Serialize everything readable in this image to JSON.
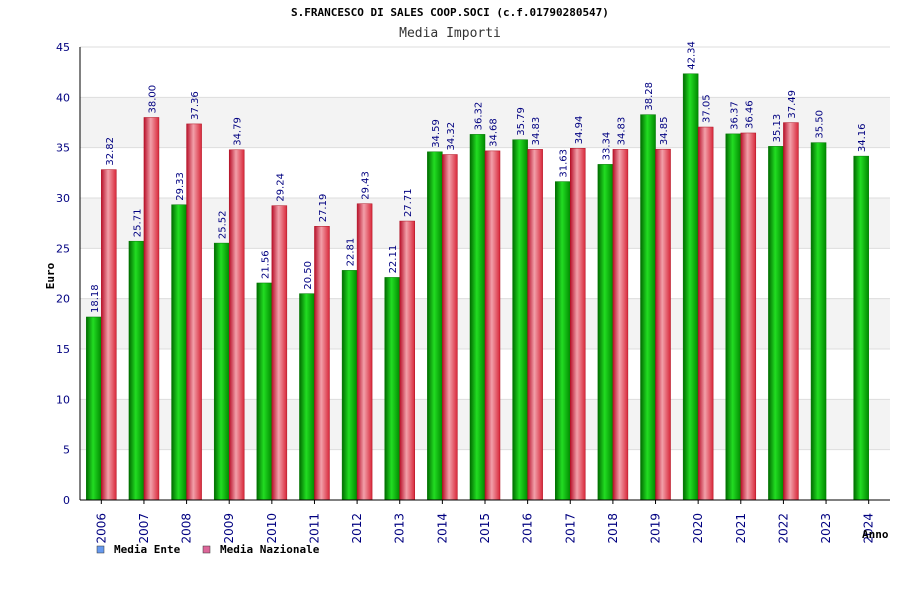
{
  "chart_data": {
    "type": "bar",
    "title": "S.FRANCESCO DI SALES COOP.SOCI (c.f.01790280547)",
    "subtitle": "Media Importi",
    "xlabel": "Anno",
    "ylabel": "Euro",
    "ylim": [
      0,
      45
    ],
    "yticks": [
      0,
      5,
      10,
      15,
      20,
      25,
      30,
      35,
      40,
      45
    ],
    "grid": true,
    "legend_position": "bottom-left",
    "categories": [
      "2006",
      "2007",
      "2008",
      "2009",
      "2010",
      "2011",
      "2012",
      "2013",
      "2014",
      "2015",
      "2016",
      "2017",
      "2018",
      "2019",
      "2020",
      "2021",
      "2022",
      "2023",
      "2024"
    ],
    "series": [
      {
        "name": "Media Ente",
        "legend_color": "#6699ee",
        "bar_color": "#00aa00",
        "values": [
          18.18,
          25.71,
          29.33,
          25.52,
          21.56,
          20.5,
          22.81,
          22.11,
          34.59,
          36.32,
          35.79,
          31.63,
          33.34,
          38.28,
          42.34,
          36.37,
          35.13,
          35.5,
          34.16
        ],
        "labels": [
          "18.18",
          "25.71",
          "29.33",
          "25.52",
          "21.56",
          "20.50",
          "22.81",
          "22.11",
          "34.59",
          "36.32",
          "35.79",
          "31.63",
          "33.34",
          "38.28",
          "42.34",
          "36.37",
          "35.13",
          "35.50",
          "34.16"
        ]
      },
      {
        "name": "Media Nazionale",
        "legend_color": "#dd6699",
        "bar_color": "#e8353f",
        "values": [
          32.82,
          38.0,
          37.36,
          34.79,
          29.24,
          27.19,
          29.43,
          27.71,
          34.32,
          34.68,
          34.83,
          34.94,
          34.83,
          34.85,
          37.05,
          36.46,
          37.49,
          null,
          null
        ],
        "labels": [
          "32.82",
          "38.00",
          "37.36",
          "34.79",
          "29.24",
          "27.19",
          "29.43",
          "27.71",
          "34.32",
          "34.68",
          "34.83",
          "34.94",
          "34.83",
          "34.85",
          "37.05",
          "36.46",
          "37.49",
          null,
          null
        ]
      }
    ]
  }
}
